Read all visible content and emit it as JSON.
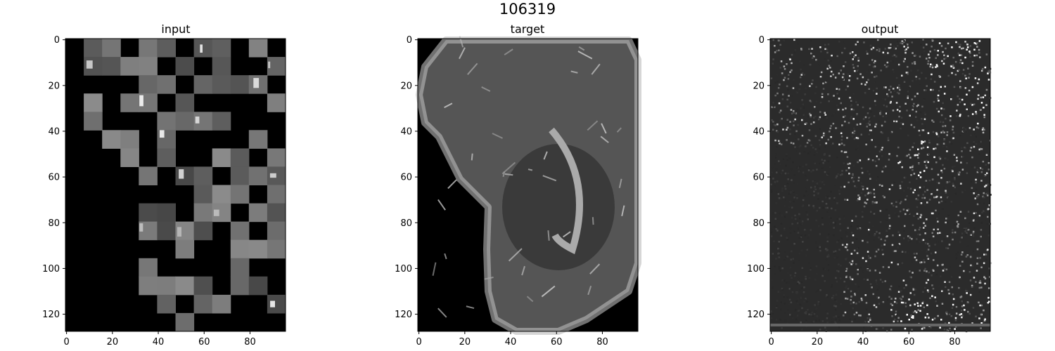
{
  "figure": {
    "title": "106319"
  },
  "panels": [
    {
      "title": "input",
      "kind": "masked"
    },
    {
      "title": "target",
      "kind": "target"
    },
    {
      "title": "output",
      "kind": "output"
    }
  ],
  "axes": {
    "y_ticks": [
      0,
      20,
      40,
      60,
      80,
      100,
      120
    ],
    "x_ticks": [
      0,
      20,
      40,
      60,
      80
    ],
    "image_rows": 128,
    "image_cols": 96
  },
  "colors": {
    "background": "#ffffff",
    "image_black": "#000000",
    "output_background": "#2b2b2b"
  }
}
